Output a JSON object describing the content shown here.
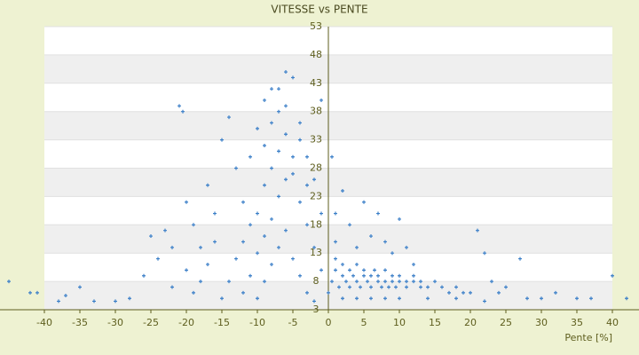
{
  "chart_data": {
    "type": "scatter",
    "title": "VITESSE vs PENTE",
    "x_label": "Pente [%]",
    "color": "#3b7fc8",
    "xlim": [
      -46.25,
      43.75
    ],
    "ylim": [
      3,
      53
    ],
    "xticks": [
      -40,
      -35,
      -30,
      -25,
      -20,
      -15,
      -10,
      -5,
      0,
      5,
      10,
      15,
      20,
      25,
      30,
      35,
      40
    ],
    "yticks": [
      3,
      8,
      13,
      18,
      23,
      28,
      33,
      38,
      43,
      48,
      53
    ],
    "grid": true,
    "x": [
      -45,
      -42,
      -41,
      -38,
      -37,
      -35,
      -33,
      -30,
      -28,
      -26,
      -25,
      -24,
      -23,
      -22,
      -21,
      -20.5,
      -20,
      -19,
      -18,
      -17,
      -16,
      -15,
      -14,
      -13,
      -12,
      -11,
      -10,
      -9,
      -8,
      -7,
      -6,
      -5,
      -4,
      -3,
      -2,
      -1,
      -15,
      -14,
      -13,
      -12,
      -11,
      -10,
      -9,
      -8,
      -7,
      -6,
      -5,
      -4,
      -3,
      -2,
      -1,
      -10,
      -9,
      -8,
      -7,
      -6,
      -5,
      -4,
      -3,
      -2,
      -12,
      -11,
      -10,
      -9,
      -8,
      -7,
      -6,
      -5,
      -4,
      -3,
      -18,
      -17,
      -16,
      -19,
      -20,
      -22,
      -6,
      -7,
      -8,
      -9,
      0,
      0.5,
      1,
      1,
      1.5,
      2,
      2,
      2.5,
      3,
      3,
      3.5,
      4,
      4,
      4.5,
      5,
      5,
      5.5,
      6,
      6,
      6.5,
      7,
      7,
      7.5,
      8,
      8,
      8.5,
      9,
      9,
      9.5,
      10,
      10,
      11,
      11,
      12,
      12,
      13,
      13,
      14,
      15,
      16,
      17,
      18,
      19,
      20,
      21,
      22,
      23,
      24,
      25,
      27,
      28,
      30,
      32,
      35,
      37,
      40,
      42,
      1,
      2,
      3,
      4,
      5,
      6,
      7,
      8,
      9,
      10,
      11,
      12,
      0.5,
      1,
      2,
      4,
      6,
      8,
      10,
      14,
      18,
      22,
      -1
    ],
    "values": [
      8,
      6,
      6,
      4.5,
      5.5,
      7,
      4.5,
      4.5,
      5,
      9,
      16,
      12,
      17,
      14,
      39,
      38,
      22,
      18,
      14,
      25,
      20,
      33,
      37,
      28,
      22,
      30,
      35,
      40,
      42,
      38,
      45,
      44,
      36,
      30,
      26,
      20,
      5,
      8,
      12,
      15,
      18,
      20,
      25,
      28,
      31,
      34,
      27,
      22,
      18,
      14,
      10,
      5,
      8,
      11,
      14,
      17,
      12,
      9,
      6,
      4.5,
      6,
      9,
      13,
      16,
      19,
      23,
      26,
      30,
      33,
      25,
      8,
      11,
      15,
      6,
      10,
      7,
      39,
      42,
      36,
      32,
      6,
      8,
      10,
      12,
      7,
      9,
      11,
      8,
      10,
      7,
      9,
      8,
      11,
      7,
      9,
      10,
      8,
      9,
      7,
      10,
      8,
      9,
      7,
      8,
      10,
      7,
      9,
      8,
      7,
      8,
      9,
      8,
      7,
      8,
      9,
      7,
      8,
      7,
      8,
      7,
      6,
      7,
      6,
      6,
      17,
      13,
      8,
      6,
      7,
      12,
      5,
      5,
      6,
      5,
      5,
      9,
      5,
      20,
      24,
      18,
      14,
      22,
      16,
      20,
      15,
      13,
      19,
      14,
      11,
      30,
      15,
      5,
      5,
      5,
      5,
      5,
      5,
      5,
      4.5,
      40
    ]
  }
}
